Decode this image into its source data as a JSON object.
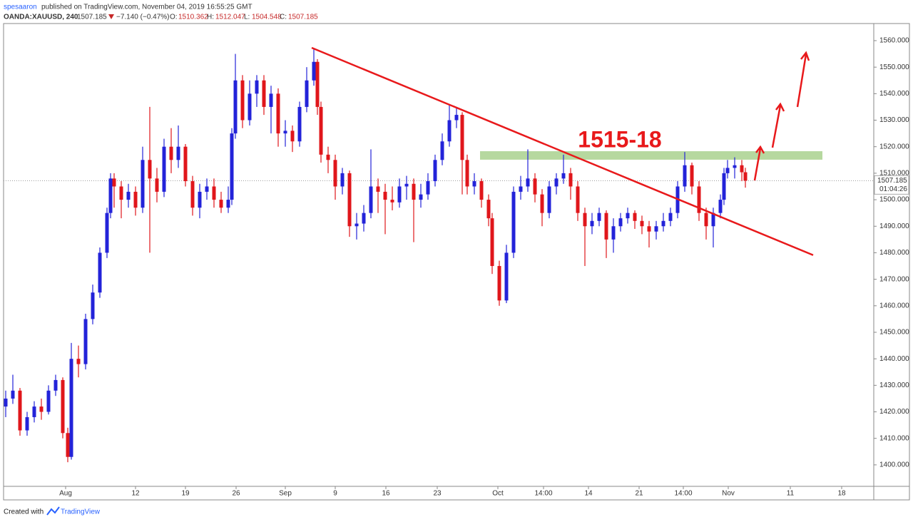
{
  "chart_data": {
    "type": "candlestick",
    "header": {
      "publisher": "spesaaron",
      "published": "published on TradingView.com, November 04, 2019 16:55:25 GMT",
      "symbol": "OANDA:XAUUSD, 240",
      "last": "1507.185",
      "change": "−7.140 (−0.47%)",
      "open_label": "O:",
      "open": "1510.362",
      "high_label": "H:",
      "high": "1512.047",
      "low_label": "L:",
      "low": "1504.548",
      "close_label": "C:",
      "close": "1507.185"
    },
    "countdown": "01:04:26",
    "footer": {
      "text": "Created with",
      "brand": "TradingView"
    },
    "annotation": "1515-18",
    "zone": {
      "low": 1515.1,
      "high": 1518.3,
      "x": [
        58.1,
        106.1
      ],
      "color": "#a9d18e"
    },
    "trendline": {
      "x": [
        34.5,
        104.8
      ],
      "y": [
        1557.3,
        1479.1
      ],
      "color": "#e8191b"
    },
    "up_color": "#2323d9",
    "down_color": "#e0161b",
    "xlim": [
      -8.7,
      113.3
    ],
    "ylim": [
      1391.9,
      1566.45
    ],
    "xticks": [
      {
        "value": 0,
        "label": "Aug"
      },
      {
        "value": 9.8,
        "label": "12"
      },
      {
        "value": 16.8,
        "label": "19"
      },
      {
        "value": 23.9,
        "label": "26"
      },
      {
        "value": 30.8,
        "label": "Sep"
      },
      {
        "value": 37.8,
        "label": "9"
      },
      {
        "value": 44.9,
        "label": "16"
      },
      {
        "value": 52.1,
        "label": "23"
      },
      {
        "value": 60.6,
        "label": "Oct"
      },
      {
        "value": 67,
        "label": "14:00"
      },
      {
        "value": 73.3,
        "label": "14"
      },
      {
        "value": 80.4,
        "label": "21"
      },
      {
        "value": 86.6,
        "label": "14:00"
      },
      {
        "value": 92.9,
        "label": "Nov"
      },
      {
        "value": 101.6,
        "label": "11"
      },
      {
        "value": 108.8,
        "label": "18"
      }
    ],
    "yticks": [
      {
        "value": 1400,
        "label": "1400.000"
      },
      {
        "value": 1410,
        "label": "1410.000"
      },
      {
        "value": 1420,
        "label": "1420.000"
      },
      {
        "value": 1430,
        "label": "1430.000"
      },
      {
        "value": 1440,
        "label": "1440.000"
      },
      {
        "value": 1450,
        "label": "1450.000"
      },
      {
        "value": 1460,
        "label": "1460.000"
      },
      {
        "value": 1470,
        "label": "1470.000"
      },
      {
        "value": 1480,
        "label": "1480.000"
      },
      {
        "value": 1490,
        "label": "1490.000"
      },
      {
        "value": 1500,
        "label": "1500.000"
      },
      {
        "value": 1510,
        "label": "1510.000"
      },
      {
        "value": 1520,
        "label": "1520.000"
      },
      {
        "value": 1530,
        "label": "1530.000"
      },
      {
        "value": 1540,
        "label": "1540.000"
      },
      {
        "value": 1550,
        "label": "1550.000"
      },
      {
        "value": 1560,
        "label": "1560.000"
      }
    ],
    "x": [
      -8.4,
      -7.4,
      -6.4,
      -5.4,
      -4.4,
      -3.4,
      -2.4,
      -1.4,
      -0.4,
      0.3,
      0.8,
      1.8,
      2.8,
      3.8,
      4.8,
      5.8,
      6.3,
      6.8,
      7.8,
      8.8,
      9.8,
      10.8,
      11.8,
      12.8,
      13.8,
      14.8,
      15.8,
      16.8,
      17.8,
      18.8,
      19.8,
      20.8,
      21.8,
      22.8,
      23.3,
      23.8,
      24.8,
      25.8,
      26.8,
      27.8,
      28.8,
      29.8,
      30.8,
      31.8,
      32.8,
      33.8,
      34.8,
      35.3,
      35.8,
      36.8,
      37.8,
      38.8,
      39.8,
      40.8,
      41.8,
      42.8,
      43.8,
      44.8,
      45.8,
      46.8,
      47.8,
      48.8,
      49.8,
      50.8,
      51.8,
      52.8,
      53.8,
      54.8,
      55.6,
      56.3,
      57.3,
      58.3,
      59.3,
      59.8,
      60.8,
      61.8,
      62.8,
      63.8,
      64.8,
      65.8,
      66.8,
      67.8,
      68.8,
      69.8,
      70.8,
      71.8,
      72.8,
      73.8,
      74.8,
      75.8,
      76.8,
      77.8,
      78.8,
      79.8,
      80.8,
      81.8,
      82.8,
      83.8,
      84.8,
      85.8,
      86.8,
      87.8,
      88.8,
      89.8,
      90.8,
      91.8,
      92.3,
      92.8,
      93.8,
      94.8,
      95.3
    ],
    "open": [
      1422,
      1425,
      1428,
      1413,
      1418,
      1422,
      1420,
      1428,
      1432,
      1412,
      1403,
      1440,
      1438,
      1455,
      1465,
      1480,
      1495,
      1508,
      1505,
      1500,
      1503,
      1497,
      1515,
      1508,
      1503,
      1520,
      1515,
      1520,
      1507,
      1497,
      1503,
      1505,
      1500,
      1497,
      1500,
      1525,
      1545,
      1530,
      1540,
      1545,
      1535,
      1540,
      1525,
      1526,
      1522,
      1535,
      1545,
      1552,
      1535,
      1517,
      1515,
      1505,
      1510,
      1490,
      1491,
      1495,
      1505,
      1503,
      1500,
      1499,
      1505,
      1506,
      1500,
      1502,
      1507,
      1515,
      1522,
      1530,
      1532,
      1515,
      1505,
      1507,
      1500,
      1493,
      1475,
      1462,
      1480,
      1503,
      1505,
      1508,
      1502,
      1495,
      1505,
      1508,
      1510,
      1505,
      1495,
      1490,
      1492,
      1495,
      1485,
      1490,
      1493,
      1495,
      1492,
      1490,
      1488,
      1490,
      1492,
      1495,
      1505,
      1513,
      1505,
      1495,
      1490,
      1495,
      1500,
      1510,
      1512,
      1513,
      1510.362
    ],
    "high": [
      1428,
      1434,
      1429,
      1420,
      1424,
      1425,
      1430,
      1434,
      1433,
      1414,
      1446,
      1445,
      1457,
      1468,
      1482,
      1497,
      1510,
      1510,
      1507,
      1506,
      1505,
      1520,
      1535,
      1512,
      1523,
      1527,
      1528,
      1521,
      1509,
      1506,
      1508,
      1508,
      1503,
      1505,
      1527,
      1555,
      1547,
      1545,
      1547,
      1547,
      1543,
      1542,
      1530,
      1528,
      1537,
      1550,
      1557,
      1553,
      1537,
      1520,
      1517,
      1512,
      1511,
      1495,
      1498,
      1519,
      1508,
      1506,
      1505,
      1508,
      1509,
      1508,
      1506,
      1510,
      1517,
      1525,
      1536,
      1535,
      1533,
      1517,
      1510,
      1508,
      1502,
      1495,
      1477,
      1483,
      1505,
      1509,
      1519,
      1510,
      1504,
      1507,
      1510,
      1517,
      1512,
      1507,
      1497,
      1495,
      1497,
      1496,
      1493,
      1495,
      1497,
      1496,
      1494,
      1492,
      1492,
      1495,
      1497,
      1507,
      1518,
      1514,
      1507,
      1497,
      1497,
      1502,
      1512,
      1515,
      1516,
      1515,
      1512.047
    ],
    "low": [
      1418,
      1423,
      1411,
      1411,
      1416,
      1417,
      1419,
      1426,
      1410,
      1401,
      1402,
      1433,
      1436,
      1453,
      1463,
      1478,
      1493,
      1497,
      1493,
      1497,
      1494,
      1495,
      1480,
      1499,
      1501,
      1510,
      1512,
      1505,
      1494,
      1493,
      1500,
      1497,
      1495,
      1495,
      1498,
      1523,
      1527,
      1528,
      1535,
      1532,
      1525,
      1520,
      1520,
      1518,
      1520,
      1533,
      1543,
      1532,
      1514,
      1510,
      1500,
      1502,
      1486,
      1485,
      1488,
      1493,
      1495,
      1487,
      1496,
      1497,
      1500,
      1484,
      1497,
      1500,
      1505,
      1513,
      1520,
      1527,
      1502,
      1502,
      1502,
      1497,
      1490,
      1472,
      1460,
      1461,
      1478,
      1500,
      1503,
      1499,
      1490,
      1493,
      1502,
      1506,
      1500,
      1492,
      1475,
      1487,
      1490,
      1478,
      1480,
      1488,
      1491,
      1489,
      1487,
      1482,
      1485,
      1488,
      1490,
      1493,
      1503,
      1502,
      1492,
      1485,
      1482,
      1493,
      1498,
      1508,
      1508,
      1507,
      1504.548
    ],
    "close": [
      1425,
      1428,
      1413,
      1418,
      1422,
      1420,
      1428,
      1432,
      1412,
      1403,
      1440,
      1438,
      1455,
      1465,
      1480,
      1495,
      1508,
      1505,
      1500,
      1503,
      1497,
      1515,
      1508,
      1503,
      1520,
      1515,
      1520,
      1507,
      1497,
      1503,
      1505,
      1500,
      1497,
      1500,
      1525,
      1545,
      1530,
      1540,
      1545,
      1535,
      1540,
      1525,
      1526,
      1522,
      1535,
      1545,
      1552,
      1535,
      1517,
      1515,
      1505,
      1510,
      1490,
      1491,
      1495,
      1505,
      1503,
      1500,
      1499,
      1505,
      1506,
      1500,
      1502,
      1507,
      1515,
      1522,
      1530,
      1532,
      1515,
      1505,
      1507,
      1500,
      1493,
      1475,
      1462,
      1480,
      1503,
      1505,
      1508,
      1502,
      1495,
      1505,
      1508,
      1510,
      1505,
      1495,
      1490,
      1492,
      1495,
      1485,
      1490,
      1493,
      1495,
      1492,
      1490,
      1488,
      1490,
      1492,
      1495,
      1505,
      1513,
      1505,
      1495,
      1490,
      1495,
      1500,
      1510,
      1512,
      1513,
      1510.362,
      1507.185
    ]
  }
}
